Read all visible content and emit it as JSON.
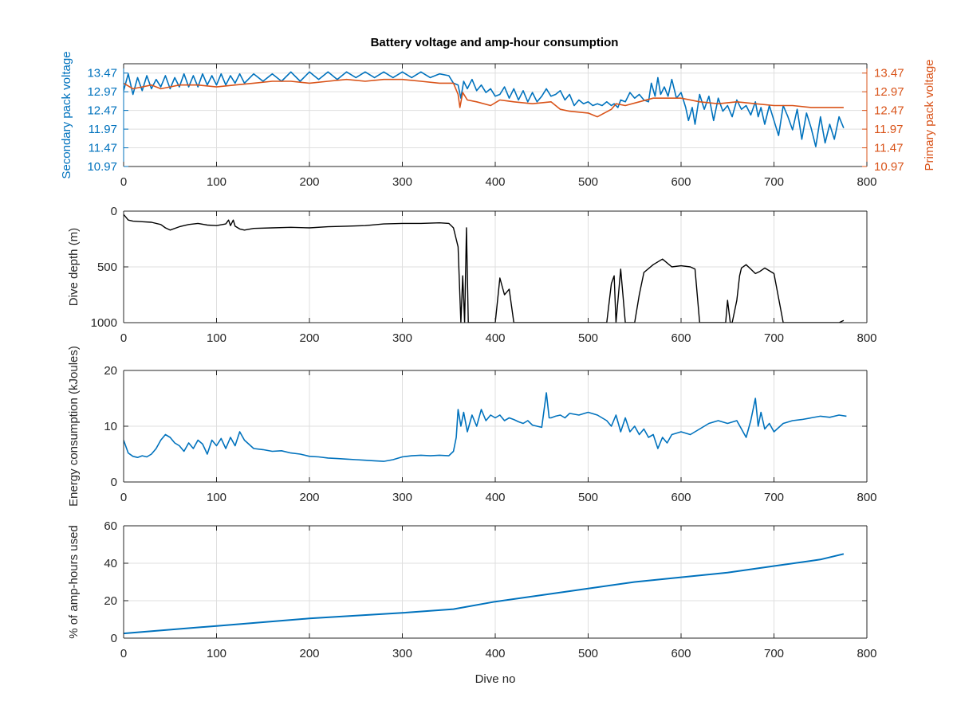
{
  "figure_title": "Battery voltage and amp-hour consumption",
  "colors": {
    "blue": "#0072BD",
    "orange": "#D95319",
    "black": "#000000",
    "axis": "#262626",
    "grid": "#dfdfdf"
  },
  "chart_data": [
    {
      "type": "line",
      "title": "Battery voltage and amp-hour consumption",
      "xlabel": "",
      "ylabel": "Secondary pack voltage",
      "ylabel_right": "Primary pack voltage",
      "xlim": [
        0,
        800
      ],
      "ylim": [
        10.97,
        13.72
      ],
      "ylim_right": [
        10.97,
        13.72
      ],
      "x_ticks": [
        0,
        100,
        200,
        300,
        400,
        500,
        600,
        700,
        800
      ],
      "y_ticks": [
        10.97,
        11.47,
        11.97,
        12.47,
        12.97,
        13.47
      ],
      "y_ticks_right": [
        10.97,
        11.47,
        11.97,
        12.47,
        12.97,
        13.47
      ],
      "grid": true,
      "series": [
        {
          "name": "Secondary pack voltage",
          "axis": "left",
          "x": [
            0,
            5,
            10,
            15,
            20,
            25,
            30,
            35,
            40,
            45,
            50,
            55,
            60,
            65,
            70,
            75,
            80,
            85,
            90,
            95,
            100,
            105,
            110,
            115,
            120,
            125,
            130,
            140,
            150,
            160,
            170,
            180,
            190,
            200,
            210,
            220,
            230,
            240,
            250,
            260,
            270,
            280,
            290,
            300,
            310,
            320,
            330,
            340,
            350,
            355,
            360,
            363,
            366,
            370,
            375,
            380,
            385,
            390,
            395,
            400,
            405,
            410,
            415,
            420,
            425,
            430,
            435,
            440,
            445,
            450,
            455,
            460,
            465,
            470,
            475,
            480,
            485,
            490,
            495,
            500,
            505,
            510,
            515,
            520,
            525,
            528,
            532,
            535,
            540,
            545,
            550,
            555,
            560,
            565,
            568,
            572,
            575,
            578,
            582,
            586,
            590,
            595,
            600,
            605,
            608,
            612,
            615,
            620,
            625,
            630,
            635,
            640,
            645,
            650,
            655,
            660,
            665,
            670,
            675,
            680,
            683,
            686,
            690,
            695,
            700,
            705,
            710,
            715,
            720,
            725,
            730,
            735,
            740,
            745,
            750,
            755,
            760,
            765,
            770,
            775
          ],
          "y": [
            13.0,
            13.45,
            12.9,
            13.35,
            13.0,
            13.4,
            13.05,
            13.3,
            13.1,
            13.4,
            13.05,
            13.35,
            13.1,
            13.45,
            13.1,
            13.4,
            13.1,
            13.45,
            13.15,
            13.4,
            13.15,
            13.45,
            13.15,
            13.4,
            13.2,
            13.45,
            13.2,
            13.45,
            13.25,
            13.45,
            13.25,
            13.5,
            13.25,
            13.5,
            13.3,
            13.5,
            13.3,
            13.5,
            13.35,
            13.5,
            13.35,
            13.5,
            13.35,
            13.5,
            13.35,
            13.5,
            13.35,
            13.45,
            13.4,
            13.2,
            13.15,
            12.8,
            13.25,
            13.05,
            13.3,
            13.0,
            13.15,
            12.95,
            13.05,
            12.85,
            12.9,
            13.1,
            12.8,
            13.05,
            12.75,
            13.0,
            12.7,
            12.95,
            12.7,
            12.85,
            13.05,
            12.85,
            12.9,
            13.0,
            12.75,
            12.9,
            12.6,
            12.75,
            12.65,
            12.7,
            12.6,
            12.65,
            12.6,
            12.7,
            12.6,
            12.65,
            12.55,
            12.75,
            12.7,
            12.95,
            12.8,
            12.9,
            12.75,
            12.7,
            13.2,
            12.85,
            13.35,
            12.9,
            13.1,
            12.85,
            13.3,
            12.8,
            12.95,
            12.55,
            12.2,
            12.55,
            12.1,
            12.9,
            12.5,
            12.85,
            12.2,
            12.8,
            12.45,
            12.6,
            12.3,
            12.75,
            12.5,
            12.6,
            12.35,
            12.7,
            12.3,
            12.55,
            12.1,
            12.6,
            12.2,
            11.8,
            12.6,
            12.3,
            11.95,
            12.5,
            11.7,
            12.4,
            12.0,
            11.5,
            12.3,
            11.6,
            12.1,
            11.7,
            12.3,
            12.0
          ],
          "color": "#0072BD"
        },
        {
          "name": "Primary pack voltage",
          "axis": "right",
          "x": [
            0,
            10,
            20,
            30,
            40,
            50,
            60,
            80,
            100,
            120,
            140,
            160,
            180,
            200,
            220,
            240,
            260,
            280,
            300,
            320,
            340,
            355,
            360,
            362,
            365,
            370,
            380,
            395,
            405,
            420,
            440,
            460,
            470,
            480,
            500,
            510,
            525,
            530,
            540,
            555,
            570,
            580,
            600,
            620,
            640,
            660,
            680,
            700,
            720,
            740,
            760,
            775
          ],
          "y": [
            13.2,
            13.05,
            13.1,
            13.15,
            13.05,
            13.1,
            13.15,
            13.15,
            13.1,
            13.15,
            13.2,
            13.25,
            13.25,
            13.2,
            13.25,
            13.3,
            13.25,
            13.3,
            13.3,
            13.25,
            13.2,
            13.2,
            12.9,
            12.55,
            12.95,
            12.75,
            12.7,
            12.6,
            12.75,
            12.7,
            12.65,
            12.7,
            12.5,
            12.45,
            12.4,
            12.3,
            12.5,
            12.65,
            12.6,
            12.7,
            12.8,
            12.8,
            12.8,
            12.7,
            12.65,
            12.7,
            12.65,
            12.6,
            12.6,
            12.55,
            12.55,
            12.55
          ],
          "color": "#D95319"
        }
      ]
    },
    {
      "type": "line",
      "title": "",
      "xlabel": "",
      "ylabel": "Dive depth (m)",
      "xlim": [
        0,
        800
      ],
      "ylim": [
        0,
        1000
      ],
      "y_reversed": true,
      "x_ticks": [
        0,
        100,
        200,
        300,
        400,
        500,
        600,
        700,
        800
      ],
      "y_ticks": [
        0,
        500,
        1000
      ],
      "grid": true,
      "series": [
        {
          "x": [
            0,
            5,
            10,
            20,
            30,
            40,
            45,
            50,
            60,
            70,
            80,
            90,
            100,
            110,
            113,
            115,
            118,
            120,
            125,
            130,
            140,
            160,
            180,
            200,
            220,
            240,
            260,
            280,
            300,
            320,
            340,
            350,
            355,
            360,
            363,
            365,
            367,
            369,
            371,
            373,
            380,
            400,
            405,
            410,
            415,
            420,
            425,
            430,
            440,
            460,
            480,
            500,
            520,
            525,
            528,
            530,
            535,
            540,
            545,
            550,
            555,
            560,
            570,
            580,
            590,
            600,
            610,
            615,
            620,
            630,
            640,
            648,
            650,
            653,
            655,
            660,
            663,
            665,
            670,
            675,
            680,
            685,
            690,
            700,
            710,
            715,
            720,
            740,
            760,
            770,
            775
          ],
          "y": [
            30,
            80,
            90,
            95,
            100,
            120,
            150,
            170,
            140,
            120,
            110,
            125,
            130,
            115,
            80,
            130,
            80,
            135,
            160,
            170,
            155,
            150,
            145,
            150,
            140,
            135,
            130,
            115,
            110,
            110,
            105,
            110,
            150,
            320,
            1000,
            580,
            1000,
            150,
            1000,
            1000,
            1000,
            1000,
            600,
            750,
            700,
            1000,
            1000,
            1000,
            1000,
            1000,
            1000,
            1000,
            1000,
            650,
            580,
            1000,
            520,
            1000,
            1000,
            1000,
            750,
            550,
            480,
            430,
            500,
            490,
            500,
            520,
            1000,
            1000,
            1000,
            1000,
            800,
            1000,
            1000,
            800,
            580,
            510,
            480,
            520,
            560,
            540,
            510,
            560,
            1000,
            1000,
            1000,
            1000,
            1000,
            1000,
            980
          ],
          "color": "#000000"
        }
      ]
    },
    {
      "type": "line",
      "title": "",
      "xlabel": "",
      "ylabel": "Energy consumption (kJoules)",
      "xlim": [
        0,
        800
      ],
      "ylim": [
        0,
        20
      ],
      "x_ticks": [
        0,
        100,
        200,
        300,
        400,
        500,
        600,
        700,
        800
      ],
      "y_ticks": [
        0,
        10,
        20
      ],
      "grid": true,
      "series": [
        {
          "x": [
            0,
            5,
            10,
            15,
            20,
            25,
            30,
            35,
            40,
            45,
            50,
            55,
            60,
            65,
            70,
            75,
            80,
            85,
            90,
            95,
            100,
            105,
            110,
            115,
            120,
            125,
            130,
            140,
            150,
            160,
            170,
            180,
            190,
            200,
            210,
            220,
            230,
            240,
            250,
            260,
            270,
            280,
            290,
            300,
            310,
            320,
            330,
            340,
            350,
            355,
            358,
            360,
            363,
            366,
            370,
            375,
            380,
            385,
            390,
            395,
            400,
            405,
            410,
            415,
            420,
            425,
            430,
            435,
            440,
            450,
            455,
            458,
            460,
            465,
            470,
            475,
            480,
            490,
            500,
            510,
            520,
            525,
            530,
            535,
            540,
            545,
            550,
            555,
            560,
            565,
            570,
            575,
            580,
            585,
            590,
            600,
            610,
            620,
            630,
            640,
            650,
            660,
            670,
            675,
            680,
            683,
            686,
            690,
            695,
            700,
            710,
            720,
            730,
            740,
            750,
            760,
            770,
            778
          ],
          "y": [
            7.5,
            5.2,
            4.6,
            4.4,
            4.7,
            4.5,
            5.0,
            6.0,
            7.5,
            8.5,
            8.0,
            7.0,
            6.5,
            5.5,
            7.0,
            6.0,
            7.5,
            6.8,
            5.0,
            7.5,
            6.5,
            7.8,
            6.0,
            8.0,
            6.5,
            9.0,
            7.5,
            6.0,
            5.8,
            5.5,
            5.6,
            5.2,
            5.0,
            4.6,
            4.5,
            4.3,
            4.2,
            4.1,
            4.0,
            3.9,
            3.8,
            3.7,
            4.0,
            4.5,
            4.7,
            4.8,
            4.7,
            4.8,
            4.7,
            5.5,
            8.0,
            13.0,
            10.0,
            12.5,
            9.0,
            12.0,
            10.0,
            13.0,
            11.0,
            12.0,
            11.5,
            12.0,
            11.0,
            11.5,
            11.2,
            10.8,
            10.5,
            11.0,
            10.2,
            9.8,
            16.0,
            11.5,
            11.5,
            11.8,
            12.0,
            11.5,
            12.3,
            12.0,
            12.5,
            12.0,
            11.0,
            10.0,
            12.0,
            9.0,
            11.5,
            9.0,
            10.0,
            8.5,
            9.5,
            8.0,
            8.5,
            6.0,
            8.0,
            7.0,
            8.5,
            9.0,
            8.5,
            9.5,
            10.5,
            11.0,
            10.5,
            11.0,
            8.0,
            11.0,
            15.0,
            10.0,
            12.5,
            9.5,
            10.5,
            9.0,
            10.5,
            11.0,
            11.2,
            11.5,
            11.8,
            11.6,
            12.0,
            11.8
          ],
          "color": "#0072BD"
        }
      ]
    },
    {
      "type": "line",
      "title": "",
      "xlabel": "Dive no",
      "ylabel": "% of amp-hours used",
      "xlim": [
        0,
        800
      ],
      "ylim": [
        0,
        60
      ],
      "x_ticks": [
        0,
        100,
        200,
        300,
        400,
        500,
        600,
        700,
        800
      ],
      "y_ticks": [
        0,
        20,
        40,
        60
      ],
      "grid": true,
      "series": [
        {
          "x": [
            0,
            50,
            100,
            150,
            200,
            250,
            300,
            355,
            400,
            450,
            500,
            550,
            600,
            650,
            700,
            750,
            775
          ],
          "y": [
            2.5,
            4.5,
            6.5,
            8.5,
            10.5,
            12.0,
            13.5,
            15.5,
            19.5,
            23.0,
            26.5,
            30.0,
            32.5,
            35.0,
            38.5,
            42.0,
            45.0
          ],
          "color": "#0072BD"
        }
      ]
    }
  ]
}
